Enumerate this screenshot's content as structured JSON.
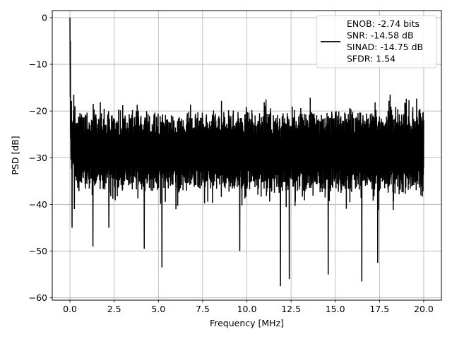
{
  "chart_data": {
    "type": "line",
    "title": "",
    "xlabel": "Frequency [MHz]",
    "ylabel": "PSD [dB]",
    "xlim": [
      -1.0,
      21.0
    ],
    "ylim": [
      -60.5,
      1.5
    ],
    "xticks": [
      0.0,
      2.5,
      5.0,
      7.5,
      10.0,
      12.5,
      15.0,
      17.5,
      20.0
    ],
    "xtick_labels": [
      "0.0",
      "2.5",
      "5.0",
      "7.5",
      "10.0",
      "12.5",
      "15.0",
      "17.5",
      "20.0"
    ],
    "yticks": [
      0,
      -10,
      -20,
      -30,
      -40,
      -50,
      -60
    ],
    "ytick_labels": [
      "0",
      "−10",
      "−20",
      "−30",
      "−40",
      "−50",
      "−60"
    ],
    "grid": true,
    "legend_position": "top-right",
    "series": [
      {
        "name": "ENOB: -2.74 bits\nSNR: -14.58 dB\nSINAD: -14.75 dB\nSFDR: 1.54",
        "legend_lines": [
          "ENOB: -2.74 bits",
          "SNR: -14.58 dB",
          "SINAD: -14.75 dB",
          "SFDR: 1.54"
        ],
        "color": "#000000",
        "x_start": 0.0,
        "x_end": 20.0,
        "peak": {
          "x": 0.0,
          "y": 0
        },
        "upper_envelope": [
          -20,
          -19.5
        ],
        "lower_envelope": [
          -37,
          -38
        ],
        "deep_minima": [
          {
            "x": 0.12,
            "y": -45
          },
          {
            "x": 0.25,
            "y": -41
          },
          {
            "x": 1.3,
            "y": -49
          },
          {
            "x": 2.2,
            "y": -45
          },
          {
            "x": 4.2,
            "y": -49.5
          },
          {
            "x": 5.2,
            "y": -53.5
          },
          {
            "x": 9.6,
            "y": -50
          },
          {
            "x": 11.9,
            "y": -57.5
          },
          {
            "x": 12.4,
            "y": -56
          },
          {
            "x": 14.6,
            "y": -55
          },
          {
            "x": 16.5,
            "y": -56.5
          },
          {
            "x": 17.4,
            "y": -52.5
          }
        ]
      }
    ]
  }
}
